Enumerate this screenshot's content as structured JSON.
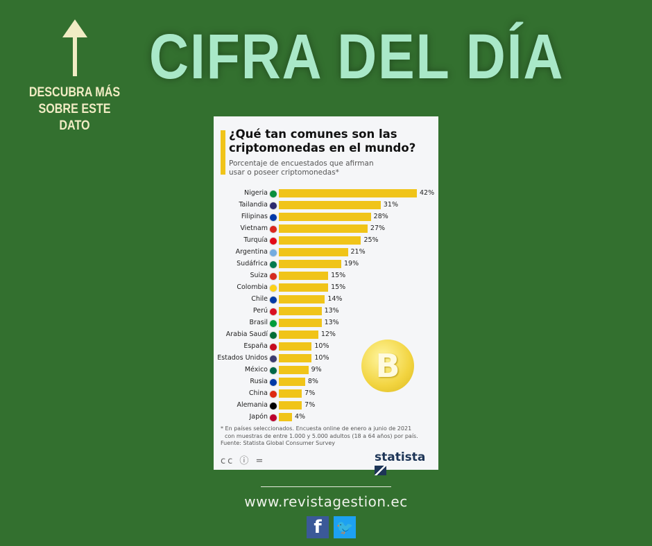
{
  "headline": "CIFRA DEL DÍA",
  "cta": "DESCUBRA MÁS SOBRE ESTE DATO",
  "chart_data": {
    "type": "bar",
    "title": "¿Qué tan comunes son las criptomonedas en el mundo?",
    "subtitle": "Porcentaje de encuestados que afirman usar o poseer criptomonedas*",
    "categories": [
      "Nigeria",
      "Tailandia",
      "Filipinas",
      "Vietnam",
      "Turquía",
      "Argentina",
      "Sudáfrica",
      "Suiza",
      "Colombia",
      "Chile",
      "Perú",
      "Brasil",
      "Arabia Saudí",
      "España",
      "Estados Unidos",
      "México",
      "Rusia",
      "China",
      "Alemania",
      "Japón"
    ],
    "values": [
      42,
      31,
      28,
      27,
      25,
      21,
      19,
      15,
      15,
      14,
      13,
      13,
      12,
      10,
      10,
      9,
      8,
      7,
      7,
      4
    ],
    "unit": "%",
    "xlim": [
      0,
      42
    ],
    "bar_color": "#f0c419",
    "note": "* En países seleccionados. Encuesta online de enero a junio de 2021",
    "note2": "con muestras de entre 1.000 y 5.000 adultos (18 a 64 años) por país.",
    "source": "Fuente: Statista Global Consumer Survey"
  },
  "license_icons": "cc ⓘ =",
  "brand": "statista",
  "site_url": "www.revistagestion.ec",
  "social": {
    "facebook": "f",
    "twitter": "t"
  }
}
